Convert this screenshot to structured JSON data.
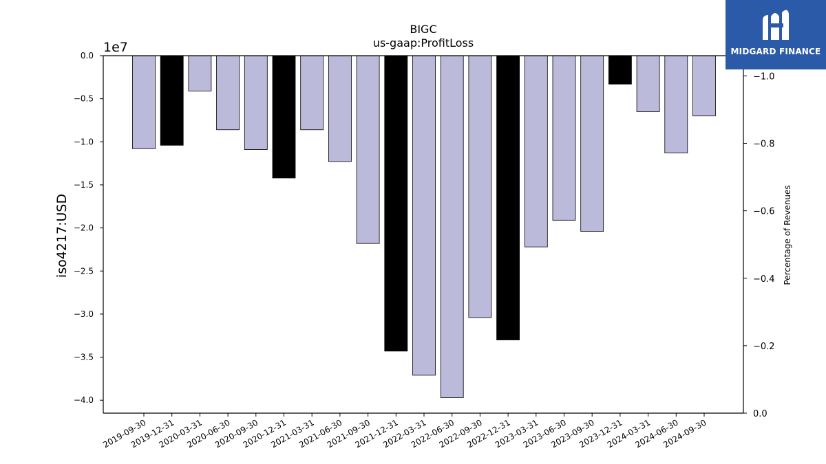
{
  "chart_data": {
    "type": "bar",
    "title": "BIGC",
    "subtitle": "us-gaap:ProfitLoss",
    "ylabel": "iso4217:USD",
    "y2label": "Percentage of Revenues",
    "offset_label": "1e7",
    "ylim": [
      -41500000,
      0
    ],
    "y2lim": [
      0,
      -1.06
    ],
    "yticks": [
      0.0,
      -0.5,
      -1.0,
      -1.5,
      -2.0,
      -2.5,
      -3.0,
      -3.5,
      -4.0
    ],
    "ytick_labels": [
      "0.0",
      "−0.5",
      "−1.0",
      "−1.5",
      "−2.0",
      "−2.5",
      "−3.0",
      "−3.5",
      "−4.0"
    ],
    "y2ticks": [
      0.0,
      -0.2,
      -0.4,
      -0.6,
      -0.8,
      -1.0
    ],
    "y2tick_labels": [
      "0.0",
      "−0.2",
      "−0.4",
      "−0.6",
      "−0.8",
      "−1.0"
    ],
    "categories": [
      "2019-09-30",
      "2019-12-31",
      "2020-03-31",
      "2020-06-30",
      "2020-09-30",
      "2020-12-31",
      "2021-03-31",
      "2021-06-30",
      "2021-09-30",
      "2021-12-31",
      "2022-03-31",
      "2022-06-30",
      "2022-09-30",
      "2022-12-31",
      "2023-03-31",
      "2023-06-30",
      "2023-09-30",
      "2023-12-31",
      "2024-03-31",
      "2024-06-30",
      "2024-09-30"
    ],
    "values": [
      -10800000,
      -10400000,
      -4100000,
      -8600000,
      -10900000,
      -14200000,
      -8600000,
      -12300000,
      -21800000,
      -34300000,
      -37100000,
      -39700000,
      -30400000,
      -33000000,
      -22200000,
      -19100000,
      -20400000,
      -3300000,
      -6500000,
      -11300000,
      -7000000
    ],
    "fiscal_year_end": [
      false,
      true,
      false,
      false,
      false,
      true,
      false,
      false,
      false,
      true,
      false,
      false,
      false,
      true,
      false,
      false,
      false,
      true,
      false,
      false,
      false
    ],
    "colors": {
      "quarter": "#bcbadb",
      "year_end": "#000000",
      "edge": "#000000"
    },
    "grid": false,
    "legend": "none"
  },
  "logo": {
    "text": "MIDGARD FINANCE",
    "bg": "#2b5aa8"
  }
}
